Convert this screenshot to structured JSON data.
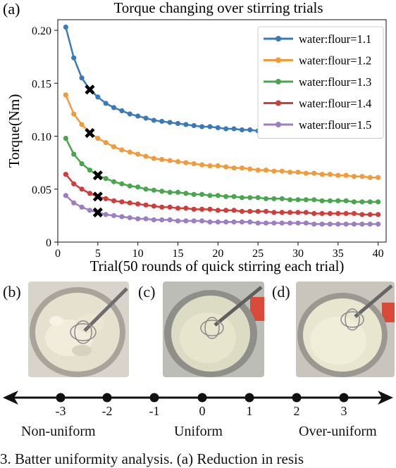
{
  "chart_data": {
    "type": "line",
    "title": "Torque changing over stirring trials",
    "xlabel": "Trial(50 rounds of quick stirring each trial)",
    "ylabel": "Torque(Nm)",
    "xlim": [
      0,
      41
    ],
    "ylim": [
      0,
      0.21
    ],
    "xticks": [
      0,
      5,
      10,
      15,
      20,
      25,
      30,
      35,
      40
    ],
    "yticks": [
      0,
      0.05,
      0.1,
      0.15,
      0.2
    ],
    "ytick_labels": [
      "0",
      "0.05",
      "0.10",
      "0.15",
      "0.20"
    ],
    "grid": false,
    "legend_position": "top-right",
    "series": [
      {
        "name": "water:flour=1.1",
        "color": "#3a7ab8",
        "marked_trial": 4,
        "values": [
          0.203,
          0.174,
          0.155,
          0.144,
          0.137,
          0.131,
          0.127,
          0.124,
          0.121,
          0.119,
          0.117,
          0.115,
          0.114,
          0.113,
          0.112,
          0.111,
          0.11,
          0.109,
          0.109,
          0.108,
          0.107,
          0.107,
          0.106,
          0.106,
          0.105,
          0.105,
          0.104,
          0.104,
          0.104,
          0.103,
          0.103,
          0.102,
          0.102,
          0.102,
          0.101,
          0.101,
          0.101,
          0.1,
          0.1,
          0.1
        ]
      },
      {
        "name": "water:flour=1.2",
        "color": "#f39a3a",
        "marked_trial": 4,
        "values": [
          0.139,
          0.121,
          0.111,
          0.103,
          0.098,
          0.094,
          0.09,
          0.087,
          0.085,
          0.083,
          0.081,
          0.079,
          0.078,
          0.077,
          0.076,
          0.075,
          0.074,
          0.073,
          0.072,
          0.072,
          0.071,
          0.07,
          0.07,
          0.069,
          0.068,
          0.068,
          0.067,
          0.067,
          0.066,
          0.066,
          0.065,
          0.065,
          0.064,
          0.064,
          0.063,
          0.063,
          0.062,
          0.062,
          0.061,
          0.061
        ]
      },
      {
        "name": "water:flour=1.3",
        "color": "#4aa64e",
        "marked_trial": 5,
        "values": [
          0.098,
          0.083,
          0.074,
          0.068,
          0.063,
          0.06,
          0.057,
          0.055,
          0.053,
          0.052,
          0.05,
          0.049,
          0.048,
          0.047,
          0.047,
          0.046,
          0.045,
          0.045,
          0.044,
          0.044,
          0.043,
          0.043,
          0.042,
          0.042,
          0.042,
          0.041,
          0.041,
          0.041,
          0.04,
          0.04,
          0.04,
          0.04,
          0.039,
          0.039,
          0.039,
          0.039,
          0.038,
          0.038,
          0.038,
          0.038
        ]
      },
      {
        "name": "water:flour=1.4",
        "color": "#cf3e3a",
        "marked_trial": 5,
        "values": [
          0.064,
          0.055,
          0.05,
          0.046,
          0.043,
          0.041,
          0.039,
          0.038,
          0.037,
          0.036,
          0.035,
          0.034,
          0.033,
          0.033,
          0.032,
          0.032,
          0.031,
          0.031,
          0.031,
          0.03,
          0.03,
          0.03,
          0.029,
          0.029,
          0.029,
          0.029,
          0.028,
          0.028,
          0.028,
          0.028,
          0.028,
          0.027,
          0.027,
          0.027,
          0.027,
          0.027,
          0.027,
          0.026,
          0.026,
          0.026
        ]
      },
      {
        "name": "water:flour=1.5",
        "color": "#9b7ec3",
        "marked_trial": 5,
        "values": [
          0.044,
          0.037,
          0.033,
          0.03,
          0.028,
          0.026,
          0.025,
          0.024,
          0.023,
          0.022,
          0.022,
          0.021,
          0.021,
          0.021,
          0.02,
          0.02,
          0.02,
          0.02,
          0.019,
          0.019,
          0.019,
          0.019,
          0.019,
          0.019,
          0.018,
          0.018,
          0.018,
          0.018,
          0.018,
          0.018,
          0.018,
          0.017,
          0.017,
          0.017,
          0.017,
          0.017,
          0.017,
          0.017,
          0.017,
          0.017
        ]
      }
    ]
  },
  "panels": {
    "a_label": "(a)",
    "b_label": "(b)",
    "c_label": "(c)",
    "d_label": "(d)"
  },
  "scale": {
    "ticks": [
      "-3",
      "-2",
      "-1",
      "0",
      "1",
      "2",
      "3"
    ],
    "left_label": "Non-uniform",
    "center_label": "Uniform",
    "right_label": "Over-uniform"
  },
  "caption": "3. Batter uniformity analysis. (a) Reduction in resis"
}
